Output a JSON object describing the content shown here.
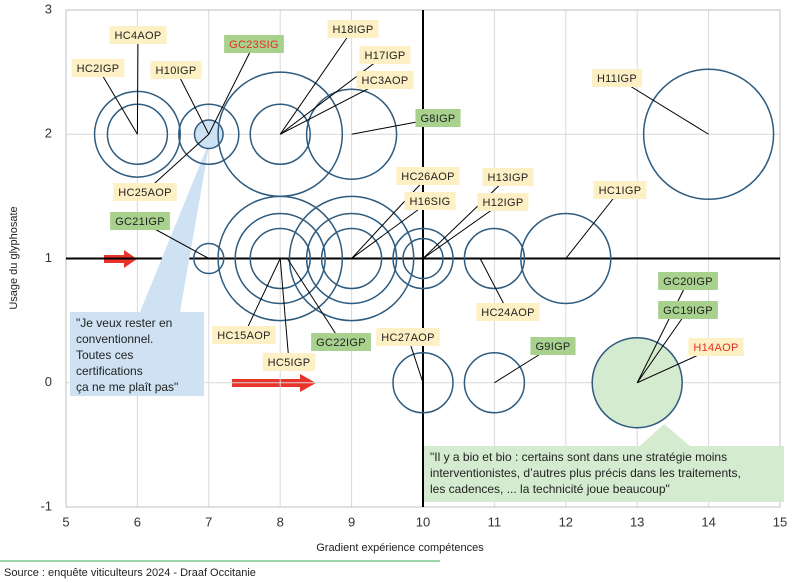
{
  "chart_data": {
    "type": "bubble",
    "x_label": "Gradient expérience compétences",
    "y_label": "Usage du glyphosate",
    "xlim": [
      5,
      15
    ],
    "xticks": [
      5,
      6,
      7,
      8,
      9,
      10,
      11,
      12,
      13,
      14,
      15
    ],
    "ylim": [
      -1,
      3
    ],
    "yticks": [
      -1,
      0,
      1,
      2,
      3
    ],
    "grid": true,
    "reference_lines": {
      "x": 10,
      "y": 1
    },
    "color": "#2e5b7e",
    "x": [
      6,
      6,
      7,
      7,
      8,
      8,
      9,
      14,
      7,
      8,
      8,
      8,
      9,
      9,
      9,
      10,
      10,
      11,
      12,
      10,
      11,
      13
    ],
    "values": [
      2,
      2,
      2,
      2,
      2,
      2,
      2,
      2,
      1,
      1,
      1,
      1,
      1,
      1,
      1,
      1,
      1,
      1,
      1,
      0,
      0,
      0
    ],
    "sizes": [
      0.6,
      0.42,
      0.42,
      0.2,
      0.87,
      0.42,
      0.63,
      0.91,
      0.21,
      0.87,
      0.63,
      0.42,
      0.87,
      0.63,
      0.42,
      0.42,
      0.28,
      0.42,
      0.63,
      0.42,
      0.42,
      0.63
    ],
    "fills": [
      null,
      null,
      null,
      "#cfe2f3",
      null,
      null,
      null,
      null,
      null,
      null,
      null,
      null,
      null,
      null,
      null,
      null,
      null,
      null,
      null,
      null,
      null,
      "#d5ebcf"
    ],
    "annotations": [
      {
        "text": "HC4AOP",
        "x": 6,
        "y": 2,
        "fill": "#fdf0c4",
        "text_color": "#222"
      },
      {
        "text": "HC2IGP",
        "x": 6,
        "y": 2,
        "fill": "#fdf0c4",
        "text_color": "#222"
      },
      {
        "text": "H10IGP",
        "x": 7,
        "y": 2,
        "fill": "#fdf0c4",
        "text_color": "#222"
      },
      {
        "text": "GC23SIG",
        "x": 7,
        "y": 2,
        "fill": "#a9d18e",
        "text_color": "#e0301e"
      },
      {
        "text": "H18IGP",
        "x": 8,
        "y": 2,
        "fill": "#fdf0c4",
        "text_color": "#222"
      },
      {
        "text": "H17IGP",
        "x": 8,
        "y": 2,
        "fill": "#fdf0c4",
        "text_color": "#222"
      },
      {
        "text": "HC3AOP",
        "x": 8,
        "y": 2,
        "fill": "#fdf0c4",
        "text_color": "#222"
      },
      {
        "text": "G8IGP",
        "x": 9,
        "y": 2,
        "fill": "#a9d18e",
        "text_color": "#222"
      },
      {
        "text": "H11IGP",
        "x": 14,
        "y": 2,
        "fill": "#fdf0c4",
        "text_color": "#222"
      },
      {
        "text": "HC25AOP",
        "x": 7,
        "y": 2,
        "fill": "#fdf0c4",
        "text_color": "#222"
      },
      {
        "text": "HC26AOP",
        "x": 9,
        "y": 1,
        "fill": "#fdf0c4",
        "text_color": "#222"
      },
      {
        "text": "H16SIG",
        "x": 9,
        "y": 1,
        "fill": "#fdf0c4",
        "text_color": "#222"
      },
      {
        "text": "H13IGP",
        "x": 10,
        "y": 1,
        "fill": "#fdf0c4",
        "text_color": "#222"
      },
      {
        "text": "H12IGP",
        "x": 10,
        "y": 1,
        "fill": "#fdf0c4",
        "text_color": "#222"
      },
      {
        "text": "HC1IGP",
        "x": 12,
        "y": 1,
        "fill": "#fdf0c4",
        "text_color": "#222"
      },
      {
        "text": "GC21IGP",
        "x": 7,
        "y": 1,
        "fill": "#a9d18e",
        "text_color": "#222"
      },
      {
        "text": "HC24AOP",
        "x": 10.8,
        "y": 1,
        "fill": "#fdf0c4",
        "text_color": "#222"
      },
      {
        "text": "HC15AOP",
        "x": 8,
        "y": 1,
        "fill": "#fdf0c4",
        "text_color": "#222"
      },
      {
        "text": "GC22IGP",
        "x": 8.1,
        "y": 1,
        "fill": "#a9d18e",
        "text_color": "#222"
      },
      {
        "text": "HC5IGP",
        "x": 8,
        "y": 1,
        "fill": "#fdf0c4",
        "text_color": "#222"
      },
      {
        "text": "HC27AOP",
        "x": 10,
        "y": 0,
        "fill": "#fdf0c4",
        "text_color": "#222"
      },
      {
        "text": "G9IGP",
        "x": 11,
        "y": 0,
        "fill": "#a9d18e",
        "text_color": "#222"
      },
      {
        "text": "GC20IGP",
        "x": 13,
        "y": 0,
        "fill": "#a9d18e",
        "text_color": "#222"
      },
      {
        "text": "GC19IGP",
        "x": 13,
        "y": 0,
        "fill": "#a9d18e",
        "text_color": "#222"
      },
      {
        "text": "H14AOP",
        "x": 13,
        "y": 0,
        "fill": "#fdf0c4",
        "text_color": "#e0301e"
      }
    ],
    "callouts": [
      {
        "lines": [
          "\"Je veux rester en",
          "conventionnel.",
          "Toutes ces",
          "certifications",
          "ça ne me plaît pas\""
        ],
        "fill": "#cfe2f3"
      },
      {
        "lines": [
          "\"Il y a bio et bio : certains sont dans une stratégie moins",
          "interventionistes, d’autres plus précis dans les traitements,",
          "les cadences, ... la technicité joue beaucoup\""
        ],
        "fill": "#d5ebcf"
      }
    ],
    "source": "Source : enquête viticulteurs 2024 - Draaf Occitanie"
  }
}
